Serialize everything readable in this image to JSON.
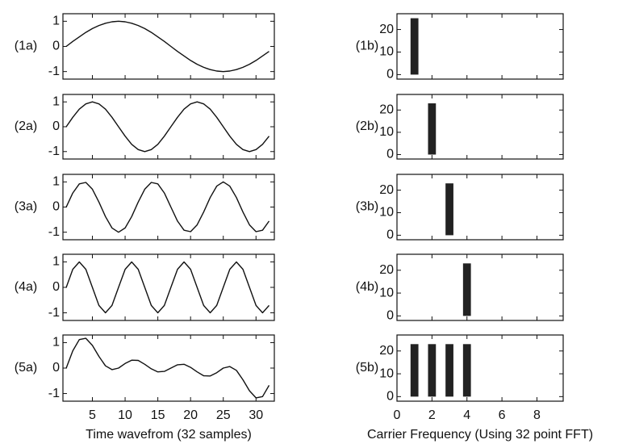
{
  "chart_data": [
    {
      "type": "line",
      "label": "(1a)",
      "x": [
        1,
        2,
        3,
        4,
        5,
        6,
        7,
        8,
        9,
        10,
        11,
        12,
        13,
        14,
        15,
        16,
        17,
        18,
        19,
        20,
        21,
        22,
        23,
        24,
        25,
        26,
        27,
        28,
        29,
        30,
        31,
        32
      ],
      "values": [
        0,
        0.2,
        0.38,
        0.56,
        0.71,
        0.83,
        0.92,
        0.98,
        1,
        0.98,
        0.92,
        0.83,
        0.71,
        0.56,
        0.38,
        0.2,
        0,
        -0.2,
        -0.38,
        -0.56,
        -0.71,
        -0.83,
        -0.92,
        -0.98,
        -1,
        -0.98,
        -0.92,
        -0.83,
        -0.71,
        -0.56,
        -0.38,
        -0.2
      ],
      "xlim": [
        0.5,
        32.8
      ],
      "ylim": [
        -1.3,
        1.3
      ],
      "xticks": [
        5,
        10,
        15,
        20,
        25,
        30
      ],
      "yticks": [
        -1,
        0,
        1
      ],
      "color": "#111"
    },
    {
      "type": "line",
      "label": "(2a)",
      "x": [
        1,
        2,
        3,
        4,
        5,
        6,
        7,
        8,
        9,
        10,
        11,
        12,
        13,
        14,
        15,
        16,
        17,
        18,
        19,
        20,
        21,
        22,
        23,
        24,
        25,
        26,
        27,
        28,
        29,
        30,
        31,
        32
      ],
      "values": [
        0,
        0.38,
        0.71,
        0.92,
        1,
        0.92,
        0.71,
        0.38,
        0,
        -0.38,
        -0.71,
        -0.92,
        -1,
        -0.92,
        -0.71,
        -0.38,
        0,
        0.38,
        0.71,
        0.92,
        1,
        0.92,
        0.71,
        0.38,
        0,
        -0.38,
        -0.71,
        -0.92,
        -1,
        -0.92,
        -0.71,
        -0.38
      ],
      "xlim": [
        0.5,
        32.8
      ],
      "ylim": [
        -1.3,
        1.3
      ],
      "xticks": [
        5,
        10,
        15,
        20,
        25,
        30
      ],
      "yticks": [
        -1,
        0,
        1
      ],
      "color": "#111"
    },
    {
      "type": "line",
      "label": "(3a)",
      "x": [
        1,
        2,
        3,
        4,
        5,
        6,
        7,
        8,
        9,
        10,
        11,
        12,
        13,
        14,
        15,
        16,
        17,
        18,
        19,
        20,
        21,
        22,
        23,
        24,
        25,
        26,
        27,
        28,
        29,
        30,
        31,
        32
      ],
      "values": [
        0,
        0.56,
        0.92,
        0.98,
        0.71,
        0.2,
        -0.38,
        -0.83,
        -1,
        -0.83,
        -0.38,
        0.2,
        0.71,
        0.98,
        0.92,
        0.56,
        0,
        -0.56,
        -0.92,
        -0.98,
        -0.71,
        -0.2,
        0.38,
        0.83,
        1,
        0.83,
        0.38,
        -0.2,
        -0.71,
        -0.98,
        -0.92,
        -0.56
      ],
      "xlim": [
        0.5,
        32.8
      ],
      "ylim": [
        -1.3,
        1.3
      ],
      "xticks": [
        5,
        10,
        15,
        20,
        25,
        30
      ],
      "yticks": [
        -1,
        0,
        1
      ],
      "color": "#111"
    },
    {
      "type": "line",
      "label": "(4a)",
      "x": [
        1,
        2,
        3,
        4,
        5,
        6,
        7,
        8,
        9,
        10,
        11,
        12,
        13,
        14,
        15,
        16,
        17,
        18,
        19,
        20,
        21,
        22,
        23,
        24,
        25,
        26,
        27,
        28,
        29,
        30,
        31,
        32
      ],
      "values": [
        0,
        0.71,
        1,
        0.71,
        0,
        -0.71,
        -1,
        -0.71,
        0,
        0.71,
        1,
        0.71,
        0,
        -0.71,
        -1,
        -0.71,
        0,
        0.71,
        1,
        0.71,
        0,
        -0.71,
        -1,
        -0.71,
        0,
        0.71,
        1,
        0.71,
        0,
        -0.71,
        -1,
        -0.71
      ],
      "xlim": [
        0.5,
        32.8
      ],
      "ylim": [
        -1.3,
        1.3
      ],
      "xticks": [
        5,
        10,
        15,
        20,
        25,
        30
      ],
      "yticks": [
        -1,
        0,
        1
      ],
      "color": "#111"
    },
    {
      "type": "line",
      "label": "(5a)",
      "x": [
        1,
        2,
        3,
        4,
        5,
        6,
        7,
        8,
        9,
        10,
        11,
        12,
        13,
        14,
        15,
        16,
        17,
        18,
        19,
        20,
        21,
        22,
        23,
        24,
        25,
        26,
        27,
        28,
        29,
        30,
        31,
        32
      ],
      "values": [
        0,
        0.68,
        1.12,
        1.17,
        0.89,
        0.46,
        0.09,
        -0.06,
        0,
        0.18,
        0.31,
        0.3,
        0.15,
        -0.03,
        -0.15,
        -0.13,
        0,
        0.13,
        0.15,
        0.03,
        -0.15,
        -0.3,
        -0.31,
        -0.18,
        0,
        0.06,
        -0.09,
        -0.46,
        -0.89,
        -1.17,
        -1.12,
        -0.68
      ],
      "xlim": [
        0.5,
        32.8
      ],
      "ylim": [
        -1.3,
        1.3
      ],
      "xticks": [
        5,
        10,
        15,
        20,
        25,
        30
      ],
      "yticks": [
        -1,
        0,
        1
      ],
      "color": "#111",
      "xlabel": "Time wavefrom (32 samples)"
    },
    {
      "type": "bar",
      "label": "(1b)",
      "x": [
        1
      ],
      "values": [
        25
      ],
      "xlim": [
        0,
        9.5
      ],
      "ylim": [
        -2,
        27
      ],
      "xticks": [
        0,
        2,
        4,
        6,
        8
      ],
      "yticks": [
        0,
        10,
        20
      ],
      "color": "#222"
    },
    {
      "type": "bar",
      "label": "(2b)",
      "x": [
        2
      ],
      "values": [
        23
      ],
      "xlim": [
        0,
        9.5
      ],
      "ylim": [
        -2,
        27
      ],
      "xticks": [
        0,
        2,
        4,
        6,
        8
      ],
      "yticks": [
        0,
        10,
        20
      ],
      "color": "#222"
    },
    {
      "type": "bar",
      "label": "(3b)",
      "x": [
        3
      ],
      "values": [
        23
      ],
      "xlim": [
        0,
        9.5
      ],
      "ylim": [
        -2,
        27
      ],
      "xticks": [
        0,
        2,
        4,
        6,
        8
      ],
      "yticks": [
        0,
        10,
        20
      ],
      "color": "#222"
    },
    {
      "type": "bar",
      "label": "(4b)",
      "x": [
        4
      ],
      "values": [
        23
      ],
      "xlim": [
        0,
        9.5
      ],
      "ylim": [
        -2,
        27
      ],
      "xticks": [
        0,
        2,
        4,
        6,
        8
      ],
      "yticks": [
        0,
        10,
        20
      ],
      "color": "#222"
    },
    {
      "type": "bar",
      "label": "(5b)",
      "x": [
        1,
        2,
        3,
        4
      ],
      "values": [
        23,
        23,
        23,
        23
      ],
      "xlim": [
        0,
        9.5
      ],
      "ylim": [
        -2,
        27
      ],
      "xticks": [
        0,
        2,
        4,
        6,
        8
      ],
      "yticks": [
        0,
        10,
        20
      ],
      "color": "#222",
      "xlabel": "Carrier Frequency (Using 32 point FFT)"
    }
  ]
}
